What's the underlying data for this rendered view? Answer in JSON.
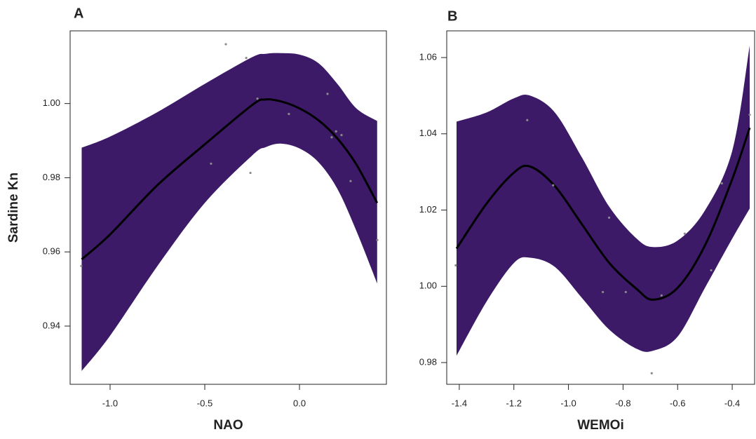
{
  "chart_data": [
    {
      "type": "line",
      "panel": "A",
      "x_label": "NAO",
      "y_label": "Sardine Kn",
      "xlim": [
        -1.211,
        0.459
      ],
      "ylim": [
        0.9243,
        1.0196
      ],
      "xticks": [
        {
          "value": -1,
          "label": "-1.0"
        },
        -0.5,
        {
          "value": 0,
          "label": "0.0"
        }
      ],
      "yticks": [
        0.94,
        0.96,
        0.98,
        {
          "value": 1,
          "label": "1.00"
        }
      ],
      "band_color": "#3d1a68",
      "line_color": "#000000",
      "point_color": "#8a8a8a",
      "x": [
        -1.15,
        -1.0,
        -0.75,
        -0.5,
        -0.25,
        -0.18,
        -0.1,
        0.0,
        0.1,
        0.2,
        0.3,
        0.41
      ],
      "fit": [
        0.958,
        0.9647,
        0.978,
        0.989,
        0.9996,
        1.0011,
        1.0006,
        0.9987,
        0.9955,
        0.9906,
        0.9836,
        0.9732
      ],
      "upper": [
        0.9881,
        0.9911,
        0.9977,
        1.0053,
        1.0125,
        1.0134,
        1.0136,
        1.0132,
        1.0109,
        1.0053,
        0.9987,
        0.9953
      ],
      "lower": [
        0.9279,
        0.9374,
        0.9562,
        0.9732,
        0.986,
        0.9882,
        0.9892,
        0.9879,
        0.9842,
        0.977,
        0.9657,
        0.9515
      ],
      "points": {
        "x": [
          -0.389,
          -0.281,
          -0.222,
          -0.056,
          0.148,
          0.193,
          0.17,
          0.222,
          0.27,
          -0.467,
          -0.259,
          -1.152,
          0.411
        ],
        "y": [
          1.016,
          1.0123,
          1.0013,
          0.9972,
          1.0026,
          0.9925,
          0.9909,
          0.9915,
          0.9791,
          0.9838,
          0.9813,
          0.9562,
          0.9632
        ]
      }
    },
    {
      "type": "line",
      "panel": "B",
      "x_label": "WEMOi",
      "xlim": [
        -1.446,
        -0.318
      ],
      "ylim": [
        0.9743,
        1.067
      ],
      "xticks": [
        -1.4,
        -1.2,
        {
          "value": -1,
          "label": "-1.0"
        },
        -0.8,
        -0.6,
        -0.4
      ],
      "yticks": [
        0.98,
        {
          "value": 1,
          "label": "1.00"
        },
        1.02,
        1.04,
        1.06
      ],
      "band_color": "#3d1a68",
      "line_color": "#000000",
      "point_color": "#8a8a8a",
      "x": [
        -1.41,
        -1.3,
        -1.2,
        -1.14,
        -1.05,
        -0.95,
        -0.85,
        -0.75,
        -0.69,
        -0.6,
        -0.5,
        -0.4,
        -0.336
      ],
      "fit": [
        1.0099,
        1.0217,
        1.0298,
        1.0314,
        1.0263,
        1.0162,
        1.0061,
        0.9993,
        0.9965,
        0.9996,
        1.0107,
        1.0281,
        1.0416
      ],
      "upper": [
        1.0432,
        1.0456,
        1.0493,
        1.05,
        1.0456,
        1.0337,
        1.0208,
        1.0125,
        1.0103,
        1.012,
        1.0199,
        1.0355,
        1.0631
      ],
      "lower": [
        0.9818,
        0.996,
        1.0061,
        1.0075,
        1.0051,
        0.9969,
        0.9886,
        0.9836,
        0.9831,
        0.9868,
        0.9996,
        1.0125,
        1.0204
      ],
      "points": {
        "x": [
          -1.151,
          -1.056,
          -1.413,
          -0.851,
          -0.874,
          -0.79,
          -0.659,
          -0.574,
          -0.438,
          -0.477,
          -0.695,
          -0.336
        ],
        "y": [
          1.0436,
          1.0265,
          1.0055,
          1.018,
          0.9985,
          0.9985,
          0.9976,
          1.0138,
          1.027,
          1.0042,
          0.9772,
          1.045
        ]
      }
    }
  ]
}
